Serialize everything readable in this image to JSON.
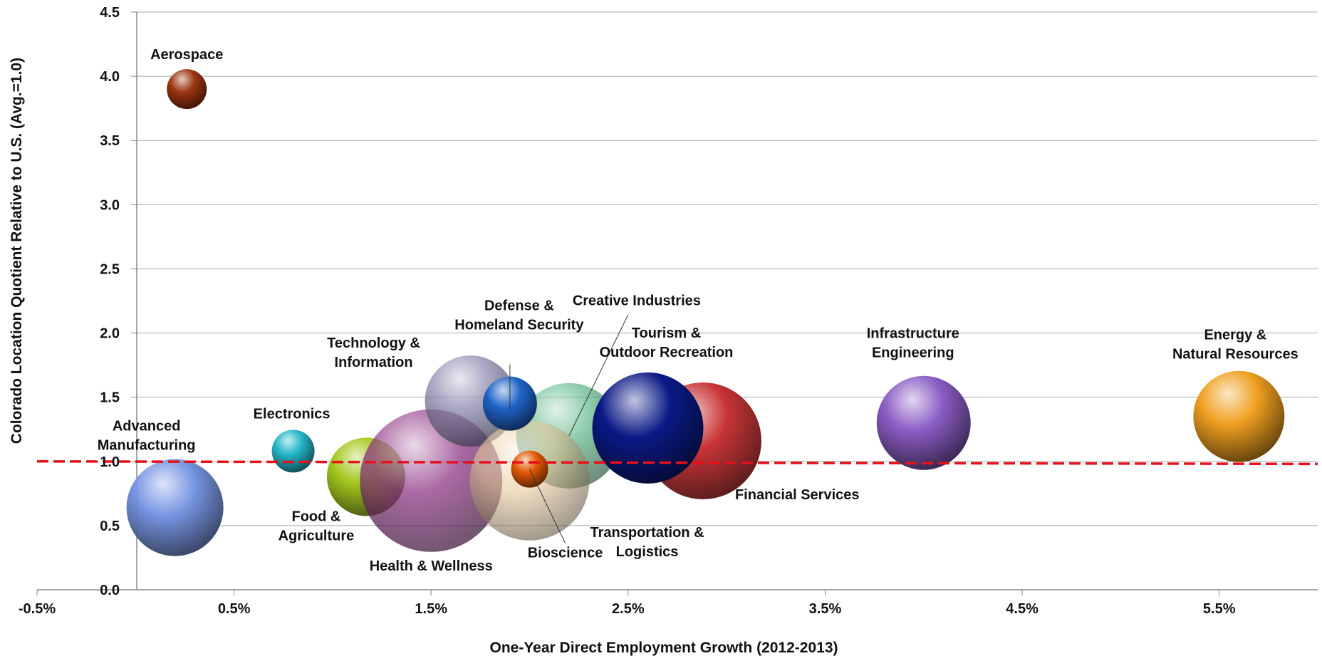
{
  "chart_data": {
    "type": "bubble",
    "xlabel": "One-Year Direct Employment Growth (2012-2013)",
    "ylabel": "Colorado Location Quotient Relative to U.S. (Avg.=1.0)",
    "xlim": [
      -0.5,
      6.0
    ],
    "ylim": [
      0.0,
      4.5
    ],
    "x_ticks": [
      -0.5,
      0.5,
      1.5,
      2.5,
      3.5,
      4.5,
      5.5
    ],
    "x_tick_labels": [
      "-0.5%",
      "0.5%",
      "1.5%",
      "2.5%",
      "3.5%",
      "4.5%",
      "5.5%"
    ],
    "y_ticks": [
      0.0,
      0.5,
      1.0,
      1.5,
      2.0,
      2.5,
      3.0,
      3.5,
      4.0,
      4.5
    ],
    "y_tick_labels": [
      "0.0",
      "0.5",
      "1.0",
      "1.5",
      "2.0",
      "2.5",
      "3.0",
      "3.5",
      "4.0",
      "4.5"
    ],
    "grid": "horizontal",
    "reference_line": {
      "y_start": 1.0,
      "y_end": 0.98,
      "color": "#e8101a",
      "style": "dashed"
    },
    "series": [
      {
        "name": "Advanced Manufacturing",
        "label_lines": [
          "Advanced",
          "Manufacturing"
        ],
        "x": 0.2,
        "y": 0.64,
        "size": 68,
        "color": "#6f8fe0",
        "opacity": 0.95
      },
      {
        "name": "Aerospace",
        "label_lines": [
          "Aerospace"
        ],
        "x": 0.26,
        "y": 3.9,
        "size": 28,
        "color": "#9a3410",
        "opacity": 1.0
      },
      {
        "name": "Electronics",
        "label_lines": [
          "Electronics"
        ],
        "x": 0.8,
        "y": 1.08,
        "size": 30,
        "color": "#24b6c8",
        "opacity": 1.0
      },
      {
        "name": "Food & Agriculture",
        "label_lines": [
          "Food &",
          "Agriculture"
        ],
        "x": 1.17,
        "y": 0.88,
        "size": 55,
        "color": "#9ec410",
        "opacity": 0.95
      },
      {
        "name": "Health & Wellness",
        "label_lines": [
          "Health & Wellness"
        ],
        "x": 1.5,
        "y": 0.85,
        "size": 100,
        "color": "#8a2f80",
        "opacity": 0.72
      },
      {
        "name": "Technology & Information",
        "label_lines": [
          "Technology &",
          "Information"
        ],
        "x": 1.7,
        "y": 1.47,
        "size": 64,
        "color": "#8c89ae",
        "opacity": 0.75
      },
      {
        "name": "Creative Industries",
        "label_lines": [
          "Creative Industries"
        ],
        "x": 2.2,
        "y": 1.2,
        "size": 74,
        "color": "#4eb07c",
        "opacity": 0.65
      },
      {
        "name": "Defense & Homeland Security",
        "label_lines": [
          "Defense &",
          "Homeland Security"
        ],
        "x": 1.9,
        "y": 1.45,
        "size": 38,
        "color": "#1f63c8",
        "opacity": 1.0
      },
      {
        "name": "Transportation & Logistics",
        "label_lines": [
          "Transportation &",
          "Logistics"
        ],
        "x": 2.0,
        "y": 0.85,
        "size": 84,
        "color": "#e8c89a",
        "opacity": 0.6
      },
      {
        "name": "Bioscience",
        "label_lines": [
          "Bioscience"
        ],
        "x": 2.0,
        "y": 0.94,
        "size": 26,
        "color": "#e25a06",
        "opacity": 1.0
      },
      {
        "name": "Financial Services",
        "label_lines": [
          "Financial  Services"
        ],
        "x": 2.88,
        "y": 1.16,
        "size": 82,
        "color": "#c6292b",
        "opacity": 0.95
      },
      {
        "name": "Tourism & Outdoor Recreation",
        "label_lines": [
          "Tourism &",
          "Outdoor Recreation"
        ],
        "x": 2.6,
        "y": 1.26,
        "size": 78,
        "color": "#0b1a86",
        "opacity": 1.0
      },
      {
        "name": "Infrastructure Engineering",
        "label_lines": [
          "Infrastructure",
          "Engineering"
        ],
        "x": 4.0,
        "y": 1.3,
        "size": 66,
        "color": "#8a5dc4",
        "opacity": 1.0
      },
      {
        "name": "Energy & Natural Resources",
        "label_lines": [
          "Energy &",
          "Natural Resources"
        ],
        "x": 5.6,
        "y": 1.35,
        "size": 64,
        "color": "#f0a020",
        "opacity": 1.0
      }
    ]
  }
}
